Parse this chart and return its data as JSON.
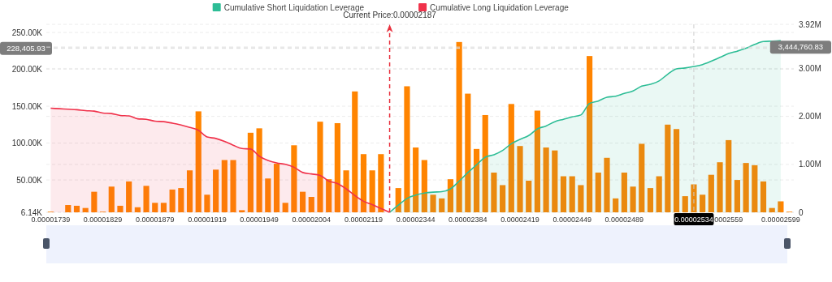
{
  "chart_data": {
    "type": "bar",
    "legend": "top",
    "grid": true,
    "categories": [
      "0.00001739",
      null,
      null,
      null,
      null,
      null,
      "0.00001829",
      null,
      null,
      null,
      null,
      null,
      "0.00001879",
      null,
      null,
      null,
      null,
      null,
      "0.00001919",
      null,
      null,
      null,
      null,
      null,
      "0.00001949",
      null,
      null,
      null,
      null,
      null,
      "0.00002004",
      null,
      null,
      null,
      null,
      null,
      "0.00002119",
      null,
      null,
      null,
      null,
      null,
      "0.00002344",
      null,
      null,
      null,
      null,
      null,
      "0.00002384",
      null,
      null,
      null,
      null,
      null,
      "0.00002419",
      null,
      null,
      null,
      null,
      null,
      "0.00002449",
      null,
      null,
      null,
      null,
      null,
      "0.00002489",
      null,
      null,
      null,
      null,
      null,
      null,
      null,
      "0.00002534",
      null,
      null,
      null,
      "0002559",
      null,
      null,
      null,
      null,
      null,
      "0.00002599",
      null
    ],
    "ylim": [
      6140,
      261000
    ],
    "yticks": [
      {
        "value": 6140,
        "label": "6.14K"
      },
      {
        "value": 50000,
        "label": "50.00K"
      },
      {
        "value": 100000,
        "label": "100.00K"
      },
      {
        "value": 150000,
        "label": "150.00K"
      },
      {
        "value": 200000,
        "label": "200.00K"
      },
      {
        "value": 250000,
        "label": "250.00K"
      }
    ],
    "y2lim": [
      0,
      3920000
    ],
    "y2ticks": [
      {
        "value": 0,
        "label": "0"
      },
      {
        "value": 1000000,
        "label": "1.00M"
      },
      {
        "value": 2000000,
        "label": "2.00M"
      },
      {
        "value": 3000000,
        "label": "3.00M"
      },
      {
        "value": 3920000,
        "label": "3.92M"
      }
    ],
    "annotations": [
      "Current Price:0.00002187"
    ],
    "ref_lines": [
      {
        "axis": "x",
        "value": "0.00002534",
        "label": "0.00002534",
        "color": "#cccccc",
        "line_style": "dashed"
      },
      {
        "axis": "y",
        "value": 228405.93,
        "label": "228,405.93",
        "color": "#dddddd",
        "line_style": "dashed"
      },
      {
        "axis": "y2",
        "value": 3444760.83,
        "label": "3,444,760.83",
        "color": "#dddddd",
        "line_style": "dashed"
      }
    ],
    "series": [
      {
        "color": "#ff8400",
        "values": [
          7000,
          null,
          16000,
          15000,
          12000,
          34000,
          7000,
          41000,
          15000,
          48000,
          13000,
          42000,
          19000,
          19000,
          37000,
          39000,
          63000,
          143000,
          30000,
          64000,
          77000,
          77000,
          9000,
          114000,
          120000,
          52000,
          72000,
          19000,
          97000,
          34000,
          27000,
          129000,
          51000,
          127000,
          63000,
          170000,
          85000,
          63000,
          85000,
          null,
          39000,
          177000,
          94000,
          77000,
          30000,
          25000,
          51000,
          237000,
          167000,
          92000,
          138000,
          60000,
          43000,
          153000,
          96000,
          49000,
          144000,
          94000,
          90000,
          55000,
          55000,
          43000,
          218000,
          60000,
          80000,
          25000,
          60000,
          41000,
          99000,
          39000,
          55000,
          125000,
          119000,
          28000,
          44000,
          30000,
          57000,
          74000,
          104000,
          50000,
          73000,
          70000,
          48000,
          12000,
          21000,
          7000
        ]
      },
      {
        "type": "area",
        "name": "Cumulative Short Liquidation Leverage",
        "color": "#2dbd96",
        "axis": "y2",
        "values": [
          null,
          null,
          null,
          null,
          null,
          null,
          null,
          null,
          null,
          null,
          null,
          null,
          null,
          null,
          null,
          null,
          null,
          null,
          null,
          null,
          null,
          null,
          null,
          null,
          null,
          null,
          null,
          null,
          null,
          null,
          null,
          null,
          null,
          null,
          null,
          null,
          null,
          null,
          null,
          0,
          150000,
          290000,
          360000,
          400000,
          420000,
          430000,
          490000,
          650000,
          830000,
          990000,
          1150000,
          1200000,
          1290000,
          1430000,
          1520000,
          1600000,
          1740000,
          1800000,
          1890000,
          1940000,
          1990000,
          2030000,
          2270000,
          2320000,
          2400000,
          2420000,
          2480000,
          2530000,
          2630000,
          2670000,
          2740000,
          2880000,
          2990000,
          3010000,
          3040000,
          3080000,
          3150000,
          3230000,
          3310000,
          3360000,
          3420000,
          3500000,
          3560000,
          3570000,
          3580000,
          null
        ]
      },
      {
        "type": "area",
        "name": "Cumulative Long Liquidation Leverage",
        "color": "#f0314a",
        "axis": "y2",
        "values": [
          2170000,
          2160000,
          2150000,
          2140000,
          2120000,
          2110000,
          2070000,
          2060000,
          2020000,
          2010000,
          1950000,
          1940000,
          1900000,
          1890000,
          1860000,
          1820000,
          1770000,
          1710000,
          1570000,
          1540000,
          1480000,
          1400000,
          1330000,
          1320000,
          1170000,
          1080000,
          1030000,
          1000000,
          940000,
          830000,
          800000,
          770000,
          650000,
          600000,
          490000,
          350000,
          230000,
          160000,
          80000,
          0,
          null,
          null,
          null,
          null,
          null,
          null,
          null,
          null,
          null,
          null,
          null,
          null,
          null,
          null,
          null,
          null,
          null,
          null,
          null,
          null,
          null,
          null,
          null,
          null,
          null,
          null,
          null,
          null,
          null,
          null,
          null,
          null,
          null,
          null,
          null,
          null,
          null,
          null,
          null,
          null,
          null,
          null,
          null,
          null,
          null,
          null
        ]
      }
    ]
  }
}
